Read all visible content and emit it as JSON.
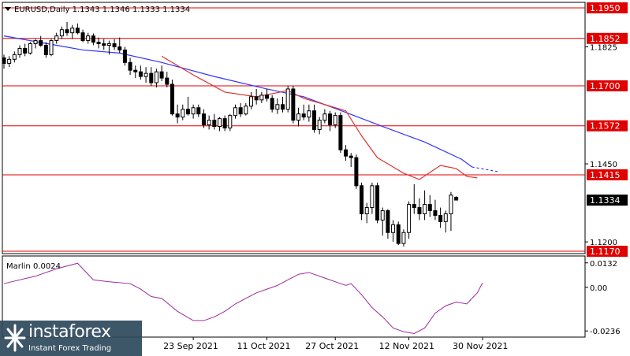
{
  "header": {
    "symbol_text": "EURUSD,Daily  1.1343 1.1346 1.1333 1.1334"
  },
  "osc_header": {
    "text": "Marlin 0.0024"
  },
  "watermark": {
    "brand": "instaforex",
    "tagline": "Instant Forex Trading"
  },
  "colors": {
    "levels": "#e00000",
    "ma_slow": "#3333ff",
    "ma_fast": "#e03030",
    "oscillator": "#9b2c9b",
    "current_price_box": "#000000"
  },
  "chart_data": [
    {
      "type": "candlestick",
      "title": "EURUSD,Daily",
      "ohlc_header": [
        1.1343,
        1.1346,
        1.1333,
        1.1334
      ],
      "ylim": [
        1.1165,
        1.1965
      ],
      "y_ticks": [
        1.12,
        1.145,
        1.1825
      ],
      "x_tick_labels": [
        "23 Sep 2021",
        "11 Oct 2021",
        "27 Oct 2021",
        "12 Nov 2021",
        "30 Nov 2021"
      ],
      "x_tick_index": [
        36,
        50,
        63,
        77,
        91
      ],
      "horizontal_levels": [
        1.195,
        1.1852,
        1.17,
        1.1572,
        1.1415,
        1.117
      ],
      "current_price": 1.1334,
      "candles": [
        [
          1.179,
          1.18,
          1.1755,
          1.1772
        ],
        [
          1.1772,
          1.1795,
          1.176,
          1.1785
        ],
        [
          1.1785,
          1.181,
          1.1775,
          1.18
        ],
        [
          1.18,
          1.183,
          1.179,
          1.182
        ],
        [
          1.182,
          1.1835,
          1.1795,
          1.1805
        ],
        [
          1.1805,
          1.184,
          1.18,
          1.1835
        ],
        [
          1.1835,
          1.185,
          1.182,
          1.1845
        ],
        [
          1.1845,
          1.186,
          1.1825,
          1.183
        ],
        [
          1.183,
          1.184,
          1.179,
          1.18
        ],
        [
          1.18,
          1.185,
          1.1795,
          1.1845
        ],
        [
          1.1845,
          1.187,
          1.1835,
          1.186
        ],
        [
          1.186,
          1.189,
          1.185,
          1.188
        ],
        [
          1.188,
          1.1905,
          1.186,
          1.187
        ],
        [
          1.187,
          1.1895,
          1.185,
          1.1885
        ],
        [
          1.1885,
          1.19,
          1.1865,
          1.187
        ],
        [
          1.187,
          1.188,
          1.184,
          1.1845
        ],
        [
          1.1845,
          1.187,
          1.1835,
          1.186
        ],
        [
          1.186,
          1.1868,
          1.183,
          1.184
        ],
        [
          1.184,
          1.1855,
          1.182,
          1.1835
        ],
        [
          1.1835,
          1.185,
          1.1815,
          1.183
        ],
        [
          1.183,
          1.1845,
          1.18,
          1.1835
        ],
        [
          1.1835,
          1.185,
          1.1815,
          1.1825
        ],
        [
          1.1825,
          1.1855,
          1.1805,
          1.1815
        ],
        [
          1.1815,
          1.1825,
          1.1765,
          1.1775
        ],
        [
          1.1775,
          1.179,
          1.1735,
          1.175
        ],
        [
          1.175,
          1.1765,
          1.1725,
          1.1745
        ],
        [
          1.1745,
          1.1765,
          1.172,
          1.173
        ],
        [
          1.173,
          1.176,
          1.171,
          1.174
        ],
        [
          1.174,
          1.176,
          1.17,
          1.171
        ],
        [
          1.171,
          1.1755,
          1.1695,
          1.1745
        ],
        [
          1.1745,
          1.1765,
          1.1715,
          1.1725
        ],
        [
          1.1725,
          1.1745,
          1.1695,
          1.1705
        ],
        [
          1.1705,
          1.172,
          1.1605,
          1.161
        ],
        [
          1.161,
          1.164,
          1.158,
          1.16
        ],
        [
          1.16,
          1.164,
          1.159,
          1.1625
        ],
        [
          1.1625,
          1.1665,
          1.1605,
          1.161
        ],
        [
          1.161,
          1.164,
          1.1595,
          1.163
        ],
        [
          1.163,
          1.164,
          1.16,
          1.161
        ],
        [
          1.161,
          1.1625,
          1.1565,
          1.1575
        ],
        [
          1.1575,
          1.1605,
          1.156,
          1.159
        ],
        [
          1.159,
          1.161,
          1.156,
          1.157
        ],
        [
          1.157,
          1.16,
          1.1555,
          1.1595
        ],
        [
          1.1595,
          1.1605,
          1.1555,
          1.1565
        ],
        [
          1.1565,
          1.161,
          1.1555,
          1.1605
        ],
        [
          1.1605,
          1.164,
          1.1595,
          1.163
        ],
        [
          1.163,
          1.1645,
          1.16,
          1.161
        ],
        [
          1.161,
          1.1645,
          1.1605,
          1.1635
        ],
        [
          1.1635,
          1.168,
          1.1625,
          1.1665
        ],
        [
          1.1665,
          1.169,
          1.164,
          1.1655
        ],
        [
          1.1655,
          1.168,
          1.1645,
          1.167
        ],
        [
          1.167,
          1.169,
          1.165,
          1.166
        ],
        [
          1.166,
          1.167,
          1.1615,
          1.1625
        ],
        [
          1.1625,
          1.166,
          1.161,
          1.164
        ],
        [
          1.164,
          1.1665,
          1.1615,
          1.1625
        ],
        [
          1.1625,
          1.17,
          1.1615,
          1.169
        ],
        [
          1.169,
          1.17,
          1.158,
          1.159
        ],
        [
          1.159,
          1.163,
          1.157,
          1.161
        ],
        [
          1.161,
          1.164,
          1.159,
          1.16
        ],
        [
          1.16,
          1.164,
          1.1585,
          1.162
        ],
        [
          1.162,
          1.164,
          1.155,
          1.156
        ],
        [
          1.156,
          1.16,
          1.1545,
          1.159
        ],
        [
          1.159,
          1.1625,
          1.158,
          1.161
        ],
        [
          1.161,
          1.162,
          1.1555,
          1.1575
        ],
        [
          1.1575,
          1.1615,
          1.1565,
          1.1605
        ],
        [
          1.1605,
          1.1615,
          1.1485,
          1.1495
        ],
        [
          1.1495,
          1.151,
          1.146,
          1.1475
        ],
        [
          1.1475,
          1.1485,
          1.144,
          1.147
        ],
        [
          1.147,
          1.148,
          1.137,
          1.138
        ],
        [
          1.138,
          1.139,
          1.127,
          1.129
        ],
        [
          1.129,
          1.1325,
          1.126,
          1.131
        ],
        [
          1.131,
          1.139,
          1.129,
          1.138
        ],
        [
          1.138,
          1.139,
          1.126,
          1.127
        ],
        [
          1.127,
          1.131,
          1.122,
          1.13
        ],
        [
          1.13,
          1.1305,
          1.121,
          1.123
        ],
        [
          1.123,
          1.127,
          1.12,
          1.1255
        ],
        [
          1.1255,
          1.1265,
          1.119,
          1.1195
        ],
        [
          1.1195,
          1.124,
          1.1185,
          1.123
        ],
        [
          1.123,
          1.133,
          1.121,
          1.132
        ],
        [
          1.132,
          1.1385,
          1.129,
          1.131
        ],
        [
          1.131,
          1.134,
          1.127,
          1.129
        ],
        [
          1.129,
          1.1365,
          1.127,
          1.132
        ],
        [
          1.132,
          1.135,
          1.128,
          1.13
        ],
        [
          1.13,
          1.1335,
          1.127,
          1.1285
        ],
        [
          1.1285,
          1.131,
          1.1245,
          1.1265
        ],
        [
          1.1265,
          1.13,
          1.123,
          1.129
        ],
        [
          1.129,
          1.136,
          1.1235,
          1.135
        ],
        [
          1.1343,
          1.1346,
          1.1333,
          1.1334
        ]
      ],
      "ma_slow": [
        [
          0,
          1.186
        ],
        [
          10,
          1.183
        ],
        [
          15,
          1.1815
        ],
        [
          22,
          1.1805
        ],
        [
          30,
          1.1775
        ],
        [
          40,
          1.173
        ],
        [
          50,
          1.169
        ],
        [
          57,
          1.1665
        ],
        [
          65,
          1.1615
        ],
        [
          72,
          1.157
        ],
        [
          80,
          1.152
        ],
        [
          87,
          1.1465
        ],
        [
          89,
          1.144
        ],
        [
          94,
          1.1425
        ]
      ],
      "ma_fast": [
        [
          30,
          1.1795
        ],
        [
          36,
          1.1735
        ],
        [
          42,
          1.168
        ],
        [
          48,
          1.1665
        ],
        [
          54,
          1.1685
        ],
        [
          57,
          1.166
        ],
        [
          62,
          1.1635
        ],
        [
          65,
          1.162
        ],
        [
          68,
          1.154
        ],
        [
          71,
          1.147
        ],
        [
          74,
          1.144
        ],
        [
          76,
          1.142
        ],
        [
          79,
          1.14
        ],
        [
          83,
          1.1445
        ],
        [
          86,
          1.1435
        ],
        [
          88,
          1.141
        ],
        [
          90,
          1.1405
        ]
      ]
    },
    {
      "type": "line",
      "title": "Marlin 0.0024",
      "ylim": [
        -0.0265,
        0.0165
      ],
      "y_ticks": [
        0.0132,
        0.0,
        -0.0236
      ],
      "series": [
        {
          "values": [
            [
              0,
              0.002
            ],
            [
              6,
              0.006
            ],
            [
              10,
              0.01
            ],
            [
              14,
              0.013
            ],
            [
              17,
              0.004
            ],
            [
              20,
              0.003
            ],
            [
              24,
              0.002
            ],
            [
              26,
              -0.001
            ],
            [
              28,
              -0.005
            ],
            [
              30,
              -0.006
            ],
            [
              33,
              -0.013
            ],
            [
              36,
              -0.018
            ],
            [
              38,
              -0.018
            ],
            [
              40,
              -0.016
            ],
            [
              42,
              -0.013
            ],
            [
              44,
              -0.009
            ],
            [
              46,
              -0.006
            ],
            [
              48,
              -0.003
            ],
            [
              50,
              -0.001
            ],
            [
              52,
              0.001
            ],
            [
              54,
              0.004
            ],
            [
              56,
              0.007
            ],
            [
              58,
              0.008
            ],
            [
              61,
              0.005
            ],
            [
              64,
              0.002
            ],
            [
              65,
              0.001
            ],
            [
              66,
              0.002
            ],
            [
              68,
              -0.004
            ],
            [
              70,
              -0.011
            ],
            [
              72,
              -0.016
            ],
            [
              74,
              -0.022
            ],
            [
              76,
              -0.024
            ],
            [
              78,
              -0.025
            ],
            [
              80,
              -0.022
            ],
            [
              82,
              -0.014
            ],
            [
              84,
              -0.01
            ],
            [
              86,
              -0.008
            ],
            [
              88,
              -0.009
            ],
            [
              90,
              -0.003
            ],
            [
              91,
              0.0024
            ]
          ]
        }
      ]
    }
  ]
}
